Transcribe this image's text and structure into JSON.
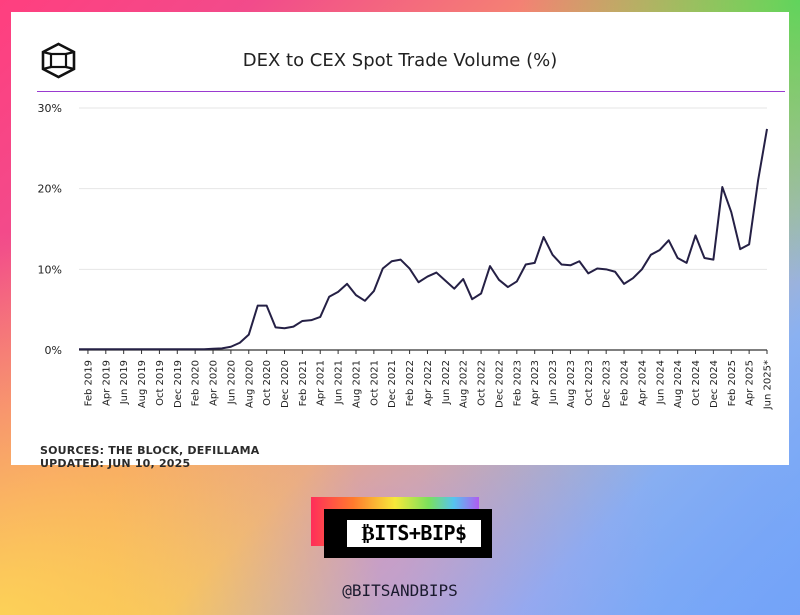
{
  "chart_data": {
    "type": "line",
    "title": "DEX to CEX Spot Trade Volume (%)",
    "xlabel": "",
    "ylabel": "",
    "ylim": [
      0,
      30
    ],
    "y_ticks": [
      "0%",
      "10%",
      "20%",
      "30%"
    ],
    "grid": true,
    "line_color": "#252045",
    "x_tick_labels": [
      "Feb 2019",
      "Apr 2019",
      "Jun 2019",
      "Aug 2019",
      "Oct 2019",
      "Dec 2019",
      "Feb 2020",
      "Apr 2020",
      "Jun 2020",
      "Aug 2020",
      "Oct 2020",
      "Dec 2020",
      "Feb 2021",
      "Apr 2021",
      "Jun 2021",
      "Aug 2021",
      "Oct 2021",
      "Dec 2021",
      "Feb 2022",
      "Apr 2022",
      "Jun 2022",
      "Aug 2022",
      "Oct 2022",
      "Dec 2022",
      "Feb 2023",
      "Apr 2023",
      "Jun 2023",
      "Aug 2023",
      "Oct 2023",
      "Dec 2023",
      "Feb 2024",
      "Apr 2024",
      "Jun 2024",
      "Aug 2024",
      "Oct 2024",
      "Dec 2024",
      "Feb 2025",
      "Apr 2025",
      "Jun 2025*"
    ],
    "x": [
      "Jan 2019",
      "Feb 2019",
      "Mar 2019",
      "Apr 2019",
      "May 2019",
      "Jun 2019",
      "Jul 2019",
      "Aug 2019",
      "Sep 2019",
      "Oct 2019",
      "Nov 2019",
      "Dec 2019",
      "Jan 2020",
      "Feb 2020",
      "Mar 2020",
      "Apr 2020",
      "May 2020",
      "Jun 2020",
      "Jul 2020",
      "Aug 2020",
      "Sep 2020",
      "Oct 2020",
      "Nov 2020",
      "Dec 2020",
      "Jan 2021",
      "Feb 2021",
      "Mar 2021",
      "Apr 2021",
      "May 2021",
      "Jun 2021",
      "Jul 2021",
      "Aug 2021",
      "Sep 2021",
      "Oct 2021",
      "Nov 2021",
      "Dec 2021",
      "Jan 2022",
      "Feb 2022",
      "Mar 2022",
      "Apr 2022",
      "May 2022",
      "Jun 2022",
      "Jul 2022",
      "Aug 2022",
      "Sep 2022",
      "Oct 2022",
      "Nov 2022",
      "Dec 2022",
      "Jan 2023",
      "Feb 2023",
      "Mar 2023",
      "Apr 2023",
      "May 2023",
      "Jun 2023",
      "Jul 2023",
      "Aug 2023",
      "Sep 2023",
      "Oct 2023",
      "Nov 2023",
      "Dec 2023",
      "Jan 2024",
      "Feb 2024",
      "Mar 2024",
      "Apr 2024",
      "May 2024",
      "Jun 2024",
      "Jul 2024",
      "Aug 2024",
      "Sep 2024",
      "Oct 2024",
      "Nov 2024",
      "Dec 2024",
      "Jan 2025",
      "Feb 2025",
      "Mar 2025",
      "Apr 2025",
      "May 2025",
      "Jun 2025*"
    ],
    "series": [
      {
        "values": [
          0.1,
          0.1,
          0.1,
          0.1,
          0.1,
          0.1,
          0.1,
          0.1,
          0.1,
          0.1,
          0.1,
          0.1,
          0.1,
          0.1,
          0.1,
          0.15,
          0.2,
          0.4,
          0.9,
          1.9,
          5.5,
          5.5,
          2.8,
          2.7,
          2.9,
          3.6,
          3.7,
          4.1,
          6.6,
          7.2,
          8.2,
          6.8,
          6.1,
          7.3,
          10.1,
          11.0,
          11.2,
          10.1,
          8.4,
          9.1,
          9.6,
          8.6,
          7.6,
          8.8,
          6.3,
          7.0,
          10.4,
          8.7,
          7.8,
          8.5,
          10.6,
          10.8,
          14.0,
          11.8,
          10.6,
          10.5,
          11.0,
          9.5,
          10.1,
          10.0,
          9.7,
          8.2,
          8.9,
          10.0,
          11.8,
          12.4,
          13.6,
          11.4,
          10.8,
          14.2,
          11.4,
          11.2,
          20.2,
          17.1,
          12.5,
          13.1,
          21.0,
          27.4
        ]
      }
    ]
  },
  "footer": {
    "sources": "SOURCES: THE BLOCK, DEFILLAMA",
    "updated": "UPDATED: JUN 10, 2025"
  },
  "brand": {
    "logo_text": "₿ITS+BIP$",
    "handle": "@BITSANDBIPS"
  },
  "icons": {
    "header_logo": "the-block-cube-logo-icon"
  }
}
